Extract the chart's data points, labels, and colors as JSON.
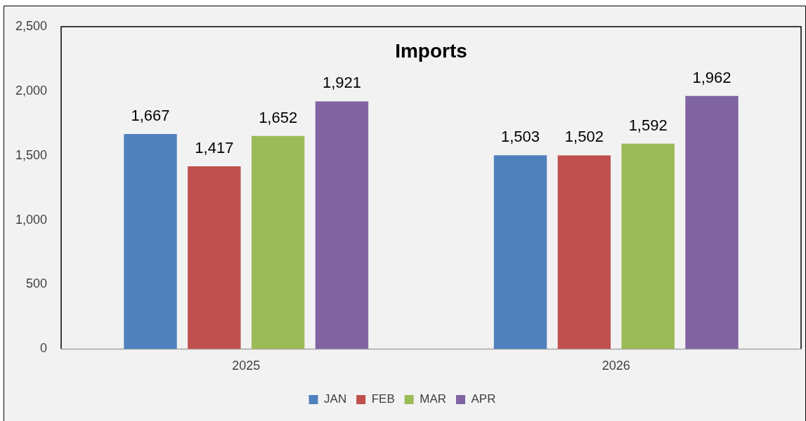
{
  "chart_data": {
    "type": "bar",
    "title": "Imports",
    "categories": [
      "2025",
      "2026"
    ],
    "series": [
      {
        "name": "JAN",
        "color": "#4f81bd",
        "values": [
          1667,
          1503
        ],
        "value_labels": [
          "1,667",
          "1,503"
        ]
      },
      {
        "name": "FEB",
        "color": "#c0504d",
        "values": [
          1417,
          1502
        ],
        "value_labels": [
          "1,417",
          "1,502"
        ]
      },
      {
        "name": "MAR",
        "color": "#9bbb59",
        "values": [
          1652,
          1592
        ],
        "value_labels": [
          "1,652",
          "1,592"
        ]
      },
      {
        "name": "APR",
        "color": "#8064a2",
        "values": [
          1921,
          1962
        ],
        "value_labels": [
          "1,921",
          "1,962"
        ]
      }
    ],
    "ylim": [
      0,
      2500
    ],
    "yticks": [
      {
        "value": 0,
        "label": "0"
      },
      {
        "value": 500,
        "label": "500"
      },
      {
        "value": 1000,
        "label": "1,000"
      },
      {
        "value": 1500,
        "label": "1,500"
      },
      {
        "value": 2000,
        "label": "2,000"
      },
      {
        "value": 2500,
        "label": "2,500"
      }
    ],
    "grid": false,
    "legend": "bottom"
  }
}
